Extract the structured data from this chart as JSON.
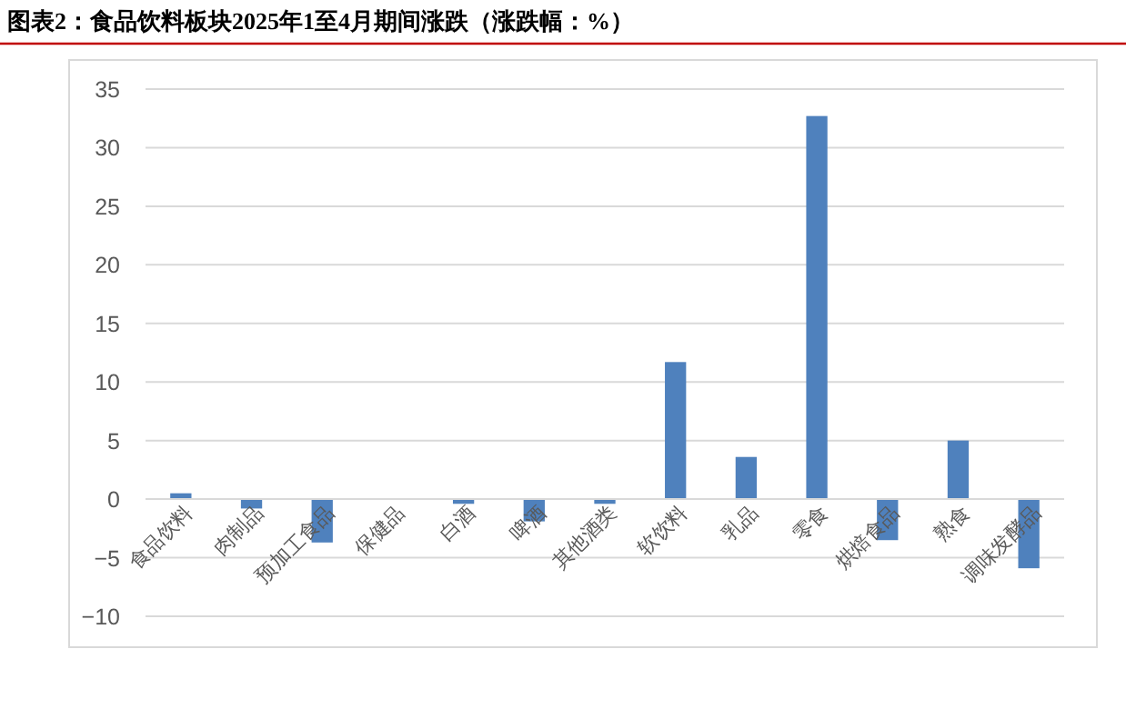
{
  "chart_data": {
    "type": "bar",
    "title": "图表2：食品饮料板块2025年1至4月期间涨跌（涨跌幅：%）",
    "categories": [
      "食品饮料",
      "肉制品",
      "预加工食品",
      "保健品",
      "白酒",
      "啤酒",
      "其他酒类",
      "软饮料",
      "乳品",
      "零食",
      "烘焙食品",
      "熟食",
      "调味发酵品"
    ],
    "series": [
      {
        "color": "#4f81bd",
        "values": [
          0.5,
          -0.8,
          -3.7,
          0,
          -0.4,
          -1.9,
          -0.4,
          11.7,
          3.6,
          32.7,
          -3.5,
          5.0,
          -5.9
        ]
      }
    ],
    "ylim": [
      -10,
      35
    ],
    "yticks": [
      {
        "value": -10,
        "label": "−10"
      },
      {
        "value": -5,
        "label": "−5"
      },
      0,
      5,
      10,
      15,
      20,
      25,
      30,
      35
    ],
    "grid": "y"
  }
}
